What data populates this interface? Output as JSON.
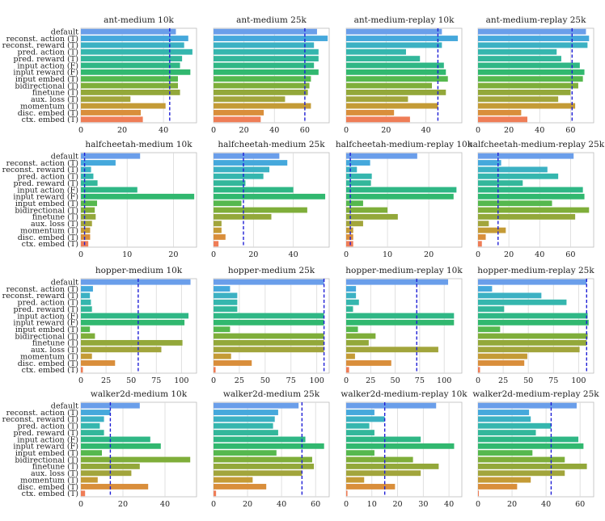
{
  "figure": {
    "background": "#ffffff",
    "grid_color": "#d9d9d9",
    "reference_line_color": "#1f1fd6"
  },
  "y_labels": [
    "default",
    "reconst. action (T)",
    "reconst. reward (T)",
    "pred. action (T)",
    "pred. reward (T)",
    "input action (F)",
    "input reward (F)",
    "input embed (T)",
    "bidirectional (T)",
    "finetune (T)",
    "aux. loss (T)",
    "momentum (T)",
    "disc. embed (T)",
    "ctx. embed (T)"
  ],
  "bar_colors": [
    "#6a9eea",
    "#45a8dc",
    "#3cb1c3",
    "#35b6ae",
    "#33b79b",
    "#2fb785",
    "#31b86f",
    "#56b84e",
    "#7fae3a",
    "#93a83a",
    "#a2a53c",
    "#c49b36",
    "#d98e3b",
    "#ef7d57"
  ],
  "chart_data": [
    {
      "type": "bar",
      "orientation": "horizontal",
      "title": "ant-medium 10k",
      "xlim": [
        0,
        56
      ],
      "xticks": [
        0,
        20,
        40
      ],
      "reference_line": 43,
      "values": [
        46,
        52,
        50,
        54,
        49,
        48,
        53,
        47,
        47,
        48,
        24,
        41,
        29,
        30
      ]
    },
    {
      "type": "bar",
      "orientation": "horizontal",
      "title": "ant-medium 25k",
      "xlim": [
        0,
        76
      ],
      "xticks": [
        0,
        20,
        40,
        60
      ],
      "reference_line": 60,
      "values": [
        68,
        75,
        66,
        69,
        69,
        66,
        69,
        64,
        63,
        62,
        47,
        64,
        33,
        31
      ]
    },
    {
      "type": "bar",
      "orientation": "horizontal",
      "title": "ant-medium-replay 10k",
      "xlim": [
        0,
        58
      ],
      "xticks": [
        0,
        20,
        40
      ],
      "reference_line": 46,
      "values": [
        48,
        56,
        48,
        30,
        37,
        49,
        50,
        51,
        43,
        50,
        31,
        46,
        24,
        32
      ]
    },
    {
      "type": "bar",
      "orientation": "horizontal",
      "title": "ant-medium-replay 25k",
      "xlim": [
        0,
        75
      ],
      "xticks": [
        0,
        20,
        40,
        60
      ],
      "reference_line": 61,
      "values": [
        70,
        72,
        71,
        51,
        54,
        66,
        69,
        68,
        65,
        60,
        52,
        63,
        28,
        32
      ]
    },
    {
      "type": "bar",
      "orientation": "horizontal",
      "title": "halfcheetah-medium 10k",
      "xlim": [
        0,
        25
      ],
      "xticks": [
        0,
        10,
        20
      ],
      "reference_line": 0.8,
      "values": [
        12.8,
        7.5,
        2.2,
        2.7,
        3.6,
        12.2,
        24.5,
        3.5,
        3,
        3.2,
        2.4,
        2,
        2,
        1.6
      ]
    },
    {
      "type": "bar",
      "orientation": "horizontal",
      "title": "halfcheetah-medium 25k",
      "xlim": [
        0,
        58
      ],
      "xticks": [
        0,
        20,
        40
      ],
      "reference_line": 15,
      "values": [
        33,
        37,
        28,
        25,
        16,
        40,
        56,
        14,
        47,
        29,
        4,
        4,
        6,
        2.5
      ]
    },
    {
      "type": "bar",
      "orientation": "horizontal",
      "title": "halfcheetah-medium-replay 10k",
      "xlim": [
        0,
        28
      ],
      "xticks": [
        0,
        10,
        20
      ],
      "reference_line": 1,
      "values": [
        17.2,
        5.8,
        2.6,
        6.2,
        6,
        26.7,
        26,
        4.1,
        10,
        12.5,
        4.1,
        1.7,
        1.7,
        1.7
      ]
    },
    {
      "type": "bar",
      "orientation": "horizontal",
      "title": "halfcheetah-medium-replay 25k",
      "xlim": [
        0,
        75
      ],
      "xticks": [
        0,
        20,
        40,
        60
      ],
      "reference_line": 13,
      "values": [
        62,
        15,
        45,
        52,
        29,
        68,
        69,
        48,
        72,
        63,
        7,
        18,
        5,
        2.5
      ]
    },
    {
      "type": "bar",
      "orientation": "horizontal",
      "title": "hopper-medium 10k",
      "xlim": [
        0,
        115
      ],
      "xticks": [
        0,
        25,
        50,
        75,
        100
      ],
      "reference_line": 57,
      "values": [
        109,
        12,
        9,
        10,
        11,
        107,
        103,
        9,
        14,
        101,
        80,
        11,
        34,
        2
      ]
    },
    {
      "type": "bar",
      "orientation": "horizontal",
      "title": "hopper-medium 25k",
      "xlim": [
        0,
        112
      ],
      "xticks": [
        0,
        25,
        50,
        75,
        100
      ],
      "reference_line": 107,
      "values": [
        107,
        16,
        23,
        23,
        23,
        107,
        107,
        16,
        107,
        107,
        107,
        17,
        37,
        2
      ]
    },
    {
      "type": "bar",
      "orientation": "horizontal",
      "title": "hopper-medium-replay 10k",
      "xlim": [
        0,
        118
      ],
      "xticks": [
        0,
        25,
        50,
        75,
        100
      ],
      "reference_line": 72,
      "values": [
        104,
        10,
        10,
        13,
        7,
        110,
        110,
        12,
        30,
        23,
        94,
        9,
        46,
        3
      ]
    },
    {
      "type": "bar",
      "orientation": "horizontal",
      "title": "hopper-medium-replay 25k",
      "xlim": [
        0,
        115
      ],
      "xticks": [
        0,
        25,
        50,
        75,
        100
      ],
      "reference_line": 108,
      "values": [
        108,
        14,
        63,
        88,
        26,
        109,
        110,
        22,
        109,
        108,
        101,
        49,
        46,
        2
      ]
    },
    {
      "type": "bar",
      "orientation": "horizontal",
      "title": "walker2d-medium 10k",
      "xlim": [
        0,
        55
      ],
      "xticks": [
        0,
        20,
        40
      ],
      "reference_line": 14,
      "values": [
        28,
        14,
        11,
        9,
        11,
        33,
        38,
        10,
        52,
        28,
        24,
        8,
        32,
        2
      ]
    },
    {
      "type": "bar",
      "orientation": "horizontal",
      "title": "walker2d-medium 25k",
      "xlim": [
        0,
        68
      ],
      "xticks": [
        0,
        20,
        40,
        60
      ],
      "reference_line": 52,
      "values": [
        50,
        38,
        36,
        35,
        38,
        54,
        65,
        37,
        58,
        59,
        52,
        23,
        31,
        1.5
      ]
    },
    {
      "type": "bar",
      "orientation": "horizontal",
      "title": "walker2d-medium-replay 10k",
      "xlim": [
        0,
        45
      ],
      "xticks": [
        0,
        10,
        20,
        30,
        40
      ],
      "reference_line": 15,
      "values": [
        35,
        11,
        15,
        9,
        11,
        29,
        42,
        11,
        26,
        36,
        29,
        7,
        19,
        0.5
      ]
    },
    {
      "type": "bar",
      "orientation": "horizontal",
      "title": "walker2d-medium-replay 25k",
      "xlim": [
        0,
        68
      ],
      "xticks": [
        0,
        20,
        40,
        60
      ],
      "reference_line": 43,
      "values": [
        58,
        30,
        31,
        43,
        34,
        59,
        62,
        32,
        51,
        64,
        51,
        31,
        23,
        0.5
      ]
    }
  ]
}
